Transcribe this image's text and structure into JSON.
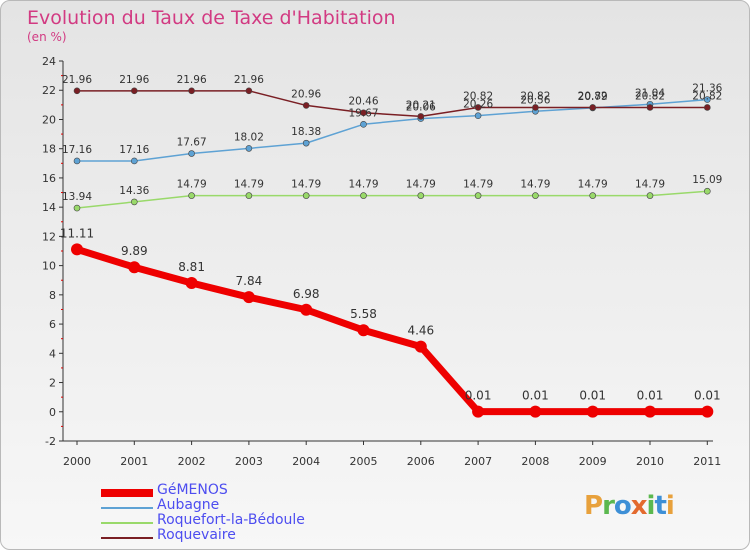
{
  "title": "Evolution du Taux de Taxe d'Habitation",
  "subtitle": "(en %)",
  "logo": {
    "letters": [
      "P",
      "r",
      "o",
      "x",
      "i",
      "t",
      "i"
    ],
    "colors": [
      "#e8a13c",
      "#5bb84f",
      "#3d8fd6",
      "#e36a2e",
      "#5bb84f",
      "#3d8fd6",
      "#e8a13c"
    ]
  },
  "chart_data": {
    "type": "line",
    "x": [
      "2000",
      "2001",
      "2002",
      "2003",
      "2004",
      "2005",
      "2006",
      "2007",
      "2008",
      "2009",
      "2010",
      "2011"
    ],
    "ylim": [
      -2,
      24
    ],
    "yticks": [
      "-2",
      "0",
      "2",
      "4",
      "6",
      "8",
      "10",
      "12",
      "14",
      "16",
      "18",
      "20",
      "22",
      "24"
    ],
    "grid": false,
    "legend": "bottom-left",
    "series": [
      {
        "name": "GéMENOS",
        "color": "#ee0000",
        "width": 7,
        "marker": 6,
        "values": [
          11.11,
          9.89,
          8.81,
          7.84,
          6.98,
          5.58,
          4.46,
          0.01,
          0.01,
          0.01,
          0.01,
          0.01
        ],
        "labels": [
          "11.11",
          "9.89",
          "8.81",
          "7.84",
          "6.98",
          "5.58",
          "4.46",
          "0.01",
          "0.01",
          "0.01",
          "0.01",
          "0.01"
        ]
      },
      {
        "name": "Aubagne",
        "color": "#5ea2d4",
        "width": 1.5,
        "marker": 3,
        "values": [
          17.16,
          17.16,
          17.67,
          18.02,
          18.38,
          19.67,
          20.06,
          20.26,
          20.56,
          20.79,
          21.04,
          21.36
        ],
        "labels": [
          "17.16",
          "17.16",
          "17.67",
          "18.02",
          "18.38",
          "19.67",
          "20.06",
          "20.26",
          "20.56",
          "20.79",
          "21.04",
          "21.36"
        ]
      },
      {
        "name": "Roquefort-la-Bédoule",
        "color": "#99d96a",
        "width": 1.5,
        "marker": 3,
        "values": [
          13.94,
          14.36,
          14.79,
          14.79,
          14.79,
          14.79,
          14.79,
          14.79,
          14.79,
          14.79,
          14.79,
          15.09
        ],
        "labels": [
          "13.94",
          "14.36",
          "14.79",
          "14.79",
          "14.79",
          "14.79",
          "14.79",
          "14.79",
          "14.79",
          "14.79",
          "14.79",
          "15.09"
        ]
      },
      {
        "name": "Roquevaire",
        "color": "#7a1f24",
        "width": 1.5,
        "marker": 3,
        "values": [
          21.96,
          21.96,
          21.96,
          21.96,
          20.96,
          20.46,
          20.21,
          20.82,
          20.82,
          20.82,
          20.82,
          20.82
        ],
        "labels": [
          "21.96",
          "21.96",
          "21.96",
          "21.96",
          "20.96",
          "20.46",
          "20.21",
          "20.82",
          "20.82",
          "20.82",
          "20.82",
          "20.82"
        ]
      }
    ]
  }
}
